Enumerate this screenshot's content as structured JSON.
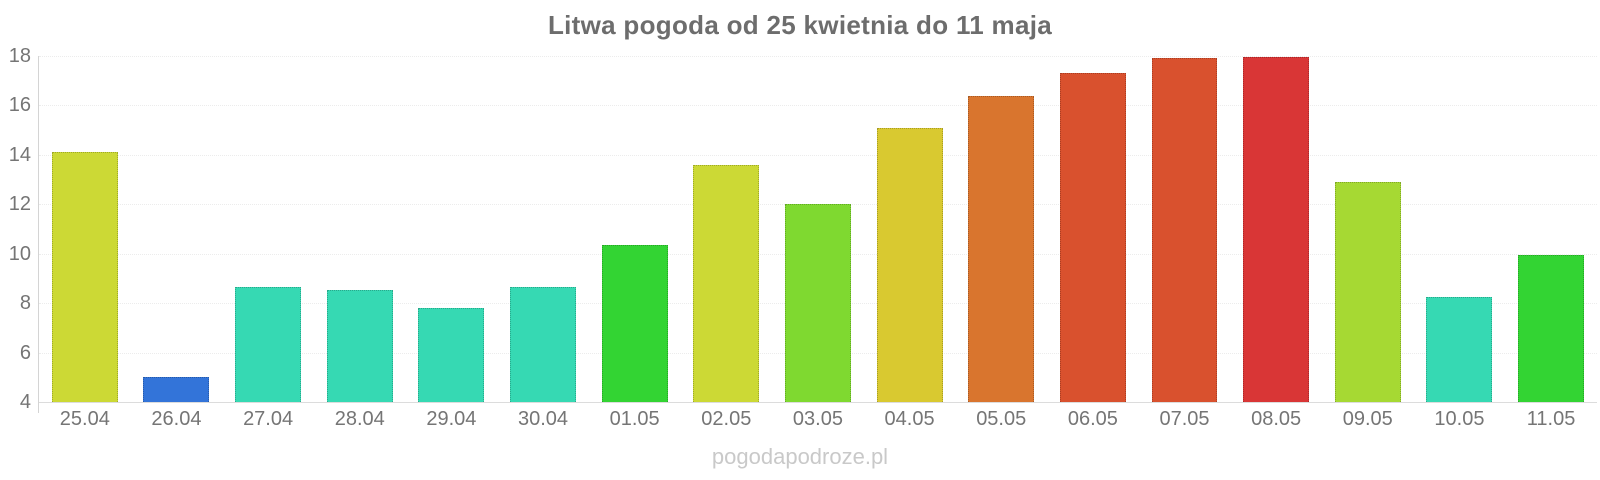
{
  "watermark": "pogodapodroze.pl",
  "chart_data": {
    "type": "bar",
    "title": "Litwa pogoda od 25 kwietnia do 11 maja",
    "categories": [
      "25.04",
      "26.04",
      "27.04",
      "28.04",
      "29.04",
      "30.04",
      "01.05",
      "02.05",
      "03.05",
      "04.05",
      "05.05",
      "06.05",
      "07.05",
      "08.05",
      "09.05",
      "10.05",
      "11.05"
    ],
    "values": [
      14.1,
      5.0,
      8.65,
      8.55,
      7.8,
      8.65,
      10.35,
      13.6,
      12.0,
      15.1,
      16.4,
      17.3,
      17.9,
      17.95,
      12.9,
      8.25,
      9.95
    ],
    "bar_colors": [
      "#ccd935",
      "#3374d9",
      "#36d9b3",
      "#36d9b3",
      "#36d9b3",
      "#36d9b3",
      "#33d433",
      "#ccd935",
      "#7fd930",
      "#d9c930",
      "#d9752e",
      "#d9512e",
      "#d9512e",
      "#d93636",
      "#a6d933",
      "#36d9b3",
      "#33d433"
    ],
    "xlabel": "",
    "ylabel": "",
    "ylim": [
      4,
      18
    ],
    "yticks": [
      4,
      6,
      8,
      10,
      12,
      14,
      16,
      18
    ],
    "grid": true,
    "legend": false
  },
  "colors": {
    "title_text": "#6d6d6d",
    "axis_text": "#757575",
    "watermark_text": "#c9c9c9",
    "gridline": "#ececec",
    "axis_line": "#d4d4d4",
    "baseline": "#dcdcdc"
  }
}
